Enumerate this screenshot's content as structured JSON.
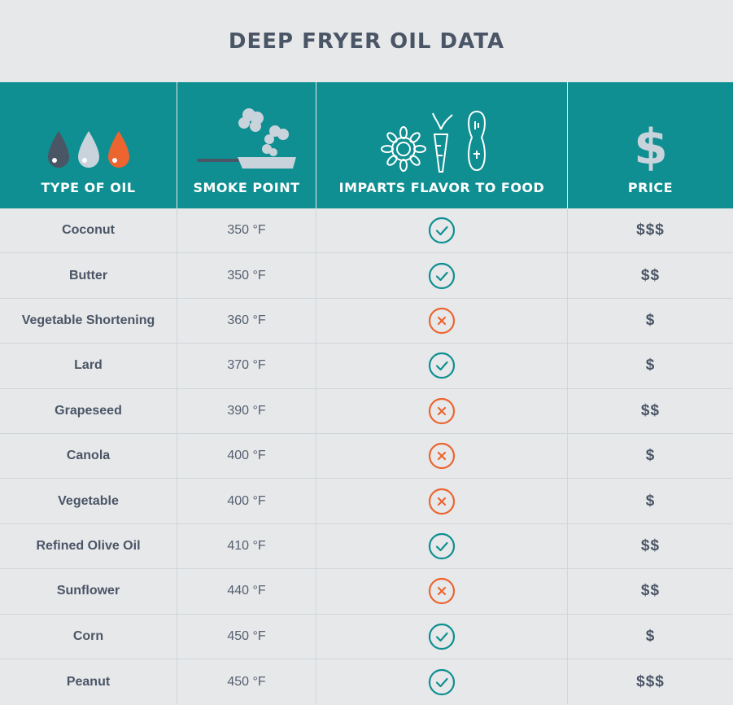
{
  "title": "DEEP FRYER OIL DATA",
  "colors": {
    "teal": "#0f8f91",
    "check": "#0f8f91",
    "cross": "#ec6530",
    "dark": "#4a5566",
    "light": "#c8d3dc"
  },
  "headers": [
    {
      "label": "TYPE OF OIL",
      "icon": "oil-drops-icon"
    },
    {
      "label": "SMOKE POINT",
      "icon": "frying-pan-smoke-icon"
    },
    {
      "label": "IMPARTS FLAVOR TO FOOD",
      "icon": "flower-carrot-peanut-icon"
    },
    {
      "label": "PRICE",
      "icon": "dollar-sign-icon"
    }
  ],
  "rows": [
    {
      "oil": "Coconut",
      "smoke": "350 °F",
      "flavor": true,
      "price": "$$$"
    },
    {
      "oil": "Butter",
      "smoke": "350 °F",
      "flavor": true,
      "price": "$$"
    },
    {
      "oil": "Vegetable Shortening",
      "smoke": "360 °F",
      "flavor": false,
      "price": "$"
    },
    {
      "oil": "Lard",
      "smoke": "370 °F",
      "flavor": true,
      "price": "$"
    },
    {
      "oil": "Grapeseed",
      "smoke": "390 °F",
      "flavor": false,
      "price": "$$"
    },
    {
      "oil": "Canola",
      "smoke": "400 °F",
      "flavor": false,
      "price": "$"
    },
    {
      "oil": "Vegetable",
      "smoke": "400 °F",
      "flavor": false,
      "price": "$"
    },
    {
      "oil": "Refined Olive Oil",
      "smoke": "410 °F",
      "flavor": true,
      "price": "$$"
    },
    {
      "oil": "Sunflower",
      "smoke": "440 °F",
      "flavor": false,
      "price": "$$"
    },
    {
      "oil": "Corn",
      "smoke": "450 °F",
      "flavor": true,
      "price": "$"
    },
    {
      "oil": "Peanut",
      "smoke": "450 °F",
      "flavor": true,
      "price": "$$$"
    }
  ]
}
